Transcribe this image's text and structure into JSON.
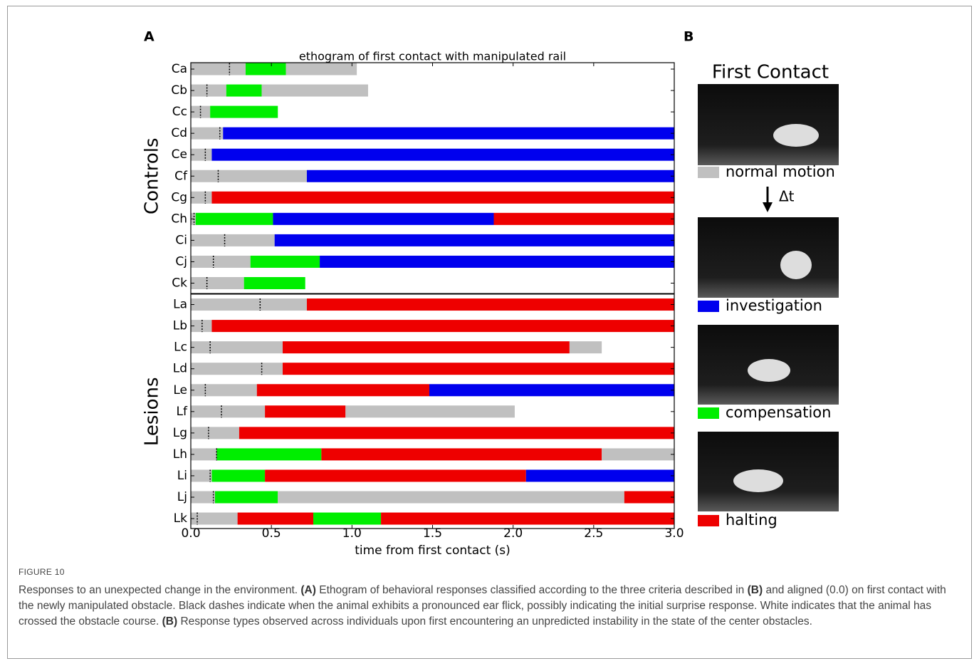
{
  "figure": {
    "panel_a_label": "A",
    "panel_b_label": "B"
  },
  "chart_data": {
    "type": "ethogram",
    "title": "ethogram of first contact with manipulated rail",
    "x_label": "time from first contact (s)",
    "xlim": [
      0,
      3
    ],
    "xticks": [
      {
        "value": 0,
        "label": "0.0"
      },
      0.5,
      {
        "value": 1,
        "label": "1.0"
      },
      1.5,
      {
        "value": 2,
        "label": "2.0"
      },
      2.5,
      {
        "value": 3,
        "label": "3.0"
      }
    ],
    "groups": [
      {
        "name": "Controls",
        "rows": 11
      },
      {
        "name": "Lesions",
        "rows": 11
      }
    ],
    "rows": [
      {
        "label": "Ca",
        "ear_flick": 0.24,
        "segments": [
          {
            "color": "#c0c0c0",
            "value": 0.34
          },
          {
            "color": "#00ee00",
            "value": 0.25
          },
          {
            "color": "#c0c0c0",
            "value": 0.44
          }
        ]
      },
      {
        "label": "Cb",
        "ear_flick": 0.1,
        "segments": [
          {
            "color": "#c0c0c0",
            "value": 0.22
          },
          {
            "color": "#00ee00",
            "value": 0.22
          },
          {
            "color": "#c0c0c0",
            "value": 0.66
          }
        ]
      },
      {
        "label": "Cc",
        "ear_flick": 0.06,
        "segments": [
          {
            "color": "#c0c0c0",
            "value": 0.12
          },
          {
            "color": "#00ee00",
            "value": 0.42
          }
        ]
      },
      {
        "label": "Cd",
        "ear_flick": 0.18,
        "segments": [
          {
            "color": "#c0c0c0",
            "value": 0.2
          },
          {
            "color": "#0000ee",
            "value": 2.8
          }
        ]
      },
      {
        "label": "Ce",
        "ear_flick": 0.09,
        "segments": [
          {
            "color": "#c0c0c0",
            "value": 0.13
          },
          {
            "color": "#0000ee",
            "value": 2.87
          }
        ]
      },
      {
        "label": "Cf",
        "ear_flick": 0.17,
        "segments": [
          {
            "color": "#c0c0c0",
            "value": 0.72
          },
          {
            "color": "#0000ee",
            "value": 2.28
          }
        ]
      },
      {
        "label": "Cg",
        "ear_flick": 0.09,
        "segments": [
          {
            "color": "#c0c0c0",
            "value": 0.13
          },
          {
            "color": "#ee0000",
            "value": 2.87
          }
        ]
      },
      {
        "label": "Ch",
        "ear_flick": 0.02,
        "segments": [
          {
            "color": "#c0c0c0",
            "value": 0.03
          },
          {
            "color": "#00ee00",
            "value": 0.48
          },
          {
            "color": "#0000ee",
            "value": 1.37
          },
          {
            "color": "#ee0000",
            "value": 1.12
          }
        ]
      },
      {
        "label": "Ci",
        "ear_flick": 0.21,
        "segments": [
          {
            "color": "#c0c0c0",
            "value": 0.52
          },
          {
            "color": "#0000ee",
            "value": 2.48
          }
        ]
      },
      {
        "label": "Cj",
        "ear_flick": 0.14,
        "segments": [
          {
            "color": "#c0c0c0",
            "value": 0.37
          },
          {
            "color": "#00ee00",
            "value": 0.43
          },
          {
            "color": "#0000ee",
            "value": 2.2
          }
        ]
      },
      {
        "label": "Ck",
        "ear_flick": 0.1,
        "segments": [
          {
            "color": "#c0c0c0",
            "value": 0.33
          },
          {
            "color": "#00ee00",
            "value": 0.38
          }
        ]
      },
      {
        "label": "La",
        "ear_flick": 0.43,
        "segments": [
          {
            "color": "#c0c0c0",
            "value": 0.72
          },
          {
            "color": "#ee0000",
            "value": 2.28
          }
        ]
      },
      {
        "label": "Lb",
        "ear_flick": 0.07,
        "segments": [
          {
            "color": "#c0c0c0",
            "value": 0.13
          },
          {
            "color": "#ee0000",
            "value": 2.87
          }
        ]
      },
      {
        "label": "Lc",
        "ear_flick": 0.12,
        "segments": [
          {
            "color": "#c0c0c0",
            "value": 0.57
          },
          {
            "color": "#ee0000",
            "value": 1.78
          },
          {
            "color": "#c0c0c0",
            "value": 0.2
          }
        ]
      },
      {
        "label": "Ld",
        "ear_flick": 0.44,
        "segments": [
          {
            "color": "#c0c0c0",
            "value": 0.57
          },
          {
            "color": "#ee0000",
            "value": 2.43
          }
        ]
      },
      {
        "label": "Le",
        "ear_flick": 0.09,
        "segments": [
          {
            "color": "#c0c0c0",
            "value": 0.41
          },
          {
            "color": "#ee0000",
            "value": 1.07
          },
          {
            "color": "#0000ee",
            "value": 1.52
          }
        ]
      },
      {
        "label": "Lf",
        "ear_flick": 0.19,
        "segments": [
          {
            "color": "#c0c0c0",
            "value": 0.46
          },
          {
            "color": "#ee0000",
            "value": 0.5
          },
          {
            "color": "#c0c0c0",
            "value": 1.05
          }
        ]
      },
      {
        "label": "Lg",
        "ear_flick": 0.11,
        "segments": [
          {
            "color": "#c0c0c0",
            "value": 0.3
          },
          {
            "color": "#ee0000",
            "value": 2.7
          }
        ]
      },
      {
        "label": "Lh",
        "ear_flick": 0.16,
        "segments": [
          {
            "color": "#c0c0c0",
            "value": 0.16
          },
          {
            "color": "#00ee00",
            "value": 0.65
          },
          {
            "color": "#ee0000",
            "value": 1.74
          },
          {
            "color": "#c0c0c0",
            "value": 0.45
          }
        ]
      },
      {
        "label": "Li",
        "ear_flick": 0.12,
        "segments": [
          {
            "color": "#c0c0c0",
            "value": 0.13
          },
          {
            "color": "#00ee00",
            "value": 0.33
          },
          {
            "color": "#ee0000",
            "value": 1.62
          },
          {
            "color": "#0000ee",
            "value": 0.92
          }
        ]
      },
      {
        "label": "Lj",
        "ear_flick": 0.14,
        "segments": [
          {
            "color": "#c0c0c0",
            "value": 0.15
          },
          {
            "color": "#00ee00",
            "value": 0.39
          },
          {
            "color": "#c0c0c0",
            "value": 2.15
          },
          {
            "color": "#ee0000",
            "value": 0.31
          }
        ]
      },
      {
        "label": "Lk",
        "ear_flick": 0.04,
        "segments": [
          {
            "color": "#c0c0c0",
            "value": 0.29
          },
          {
            "color": "#ee0000",
            "value": 0.47
          },
          {
            "color": "#00ee00",
            "value": 0.42
          },
          {
            "color": "#ee0000",
            "value": 1.82
          }
        ]
      }
    ]
  },
  "panel_b": {
    "title": "First Contact",
    "arrow_label": "Δt",
    "legend": [
      {
        "name": "normal motion",
        "color": "#c0c0c0"
      },
      {
        "name": "investigation",
        "color": "#0000ee"
      },
      {
        "name": "compensation",
        "color": "#00ee00"
      },
      {
        "name": "halting",
        "color": "#ee0000"
      }
    ]
  },
  "caption": {
    "label": "FIGURE 10",
    "parts": [
      {
        "text": "Responses to an unexpected change in the environment. "
      },
      {
        "text": "(A)",
        "bold": true
      },
      {
        "text": " Ethogram of behavioral responses classified according to the three criteria described in "
      },
      {
        "text": "(B)",
        "bold": true
      },
      {
        "text": " and aligned (0.0) on first contact with the newly manipulated obstacle. Black dashes indicate when the animal exhibits a pronounced ear flick, possibly indicating the initial surprise response. White indicates that the animal has crossed the obstacle course. "
      },
      {
        "text": "(B)",
        "bold": true
      },
      {
        "text": " Response types observed across individuals upon first encountering an unpredicted instability in the state of the center obstacles."
      }
    ]
  }
}
